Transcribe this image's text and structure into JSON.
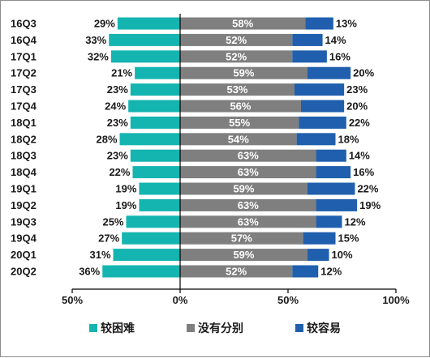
{
  "chart_data": {
    "type": "bar",
    "orientation": "horizontal",
    "stacking": "diverging",
    "categories": [
      "16Q3",
      "16Q4",
      "17Q1",
      "17Q2",
      "17Q3",
      "17Q4",
      "18Q1",
      "18Q2",
      "18Q3",
      "18Q4",
      "19Q1",
      "19Q2",
      "19Q3",
      "19Q4",
      "20Q1",
      "20Q2"
    ],
    "series": [
      {
        "name": "较困难",
        "color": "#14b5b0",
        "direction": "left",
        "values": [
          29,
          33,
          32,
          21,
          23,
          24,
          23,
          28,
          23,
          22,
          19,
          19,
          25,
          27,
          31,
          36
        ],
        "labels": [
          "29%",
          "33%",
          "32%",
          "21%",
          "23%",
          "24%",
          "23%",
          "28%",
          "23%",
          "22%",
          "19%",
          "19%",
          "25%",
          "27%",
          "31%",
          "36%"
        ]
      },
      {
        "name": "没有分别",
        "color": "#7f7f7f",
        "direction": "right",
        "values": [
          58,
          52,
          52,
          59,
          53,
          56,
          55,
          54,
          63,
          63,
          59,
          63,
          63,
          57,
          59,
          52
        ],
        "labels": [
          "58%",
          "52%",
          "52%",
          "59%",
          "53%",
          "56%",
          "55%",
          "54%",
          "63%",
          "63%",
          "59%",
          "63%",
          "63%",
          "57%",
          "59%",
          "52%"
        ]
      },
      {
        "name": "较容易",
        "color": "#1f5fad",
        "direction": "right",
        "values": [
          13,
          14,
          16,
          20,
          23,
          20,
          22,
          18,
          14,
          16,
          22,
          19,
          12,
          15,
          10,
          12
        ],
        "labels": [
          "13%",
          "14%",
          "16%",
          "20%",
          "23%",
          "20%",
          "22%",
          "18%",
          "14%",
          "16%",
          "22%",
          "19%",
          "12%",
          "15%",
          "10%",
          "12%"
        ]
      }
    ],
    "xlim": [
      -50,
      100
    ],
    "xticks": [
      -50,
      0,
      50,
      100
    ],
    "xtick_labels": [
      "50%",
      "0%",
      "50%",
      "100%"
    ],
    "legend_position": "bottom",
    "grid": false
  }
}
